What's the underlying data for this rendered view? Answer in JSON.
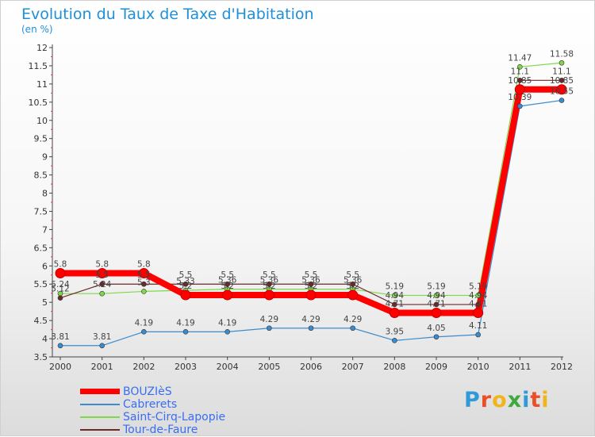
{
  "header": {
    "title": "Evolution du Taux de Taxe d'Habitation",
    "subtitle": "(en %)"
  },
  "logo": {
    "text": "Proxiti"
  },
  "chart_data": {
    "type": "line",
    "title": "Evolution du Taux de Taxe d'Habitation",
    "subtitle": "(en %)",
    "ylim": [
      3.5,
      12
    ],
    "yticks": [
      "3.5",
      "4",
      "4.5",
      "5",
      "5.5",
      "6",
      "6.5",
      "7",
      "7.5",
      "8",
      "8.5",
      "9",
      "9.5",
      "10",
      "10.5",
      "11",
      "11.5",
      "12"
    ],
    "x": [
      "2000",
      "2001",
      "2002",
      "2003",
      "2004",
      "2005",
      "2006",
      "2007",
      "2008",
      "2009",
      "2010",
      "2011",
      "2012"
    ],
    "grid": false,
    "legend": "bottom-left",
    "series": [
      {
        "name": "Saint-Cirq-Lapopie",
        "color": "#7fd84a",
        "width": 1.2,
        "values": [
          5.24,
          5.24,
          5.3,
          5.33,
          5.36,
          5.36,
          5.36,
          5.36,
          5.19,
          5.19,
          5.19,
          11.47,
          11.58
        ],
        "labels": [
          "5.24",
          "5.24",
          "5.3",
          "5.33",
          "5.36",
          "5.36",
          "5.36",
          "5.36",
          "5.19",
          "5.19",
          "5.19",
          "11.47",
          "11.58"
        ]
      },
      {
        "name": "Tour-de-Faure",
        "color": "#6b2a2a",
        "width": 1.2,
        "values": [
          5.12,
          5.5,
          5.5,
          5.5,
          5.5,
          5.5,
          5.5,
          5.5,
          4.94,
          4.94,
          4.94,
          11.1,
          11.1
        ],
        "labels": [
          "5.12",
          "5.5",
          "5.5",
          "5.5",
          "5.5",
          "5.5",
          "5.5",
          "5.5",
          "4.94",
          "4.94",
          "4.94",
          "11.1",
          "11.1"
        ]
      },
      {
        "name": "Cabrerets",
        "color": "#3b8ccf",
        "width": 1.2,
        "values": [
          3.81,
          3.81,
          4.19,
          4.19,
          4.19,
          4.29,
          4.29,
          4.29,
          3.95,
          4.05,
          4.11,
          10.39,
          10.55
        ],
        "labels": [
          "3.81",
          "3.81",
          "4.19",
          "4.19",
          "4.19",
          "4.29",
          "4.29",
          "4.29",
          "3.95",
          "4.05",
          "4.11",
          "10.39",
          "10.55"
        ]
      },
      {
        "name": "BOUZIèS",
        "color": "#ff0000",
        "width": 8,
        "values": [
          5.8,
          5.8,
          5.8,
          5.2,
          5.2,
          5.2,
          5.2,
          5.2,
          4.71,
          4.71,
          4.71,
          10.85,
          10.85
        ],
        "labels": [
          "5.8",
          "5.8",
          "5.8",
          "5.2",
          "5.2",
          "5.2",
          "5.2",
          "5.2",
          "4.71",
          "4.71",
          "4.71",
          "10.85",
          "10.85"
        ]
      }
    ],
    "legend_order": [
      "BOUZIèS",
      "Cabrerets",
      "Saint-Cirq-Lapopie",
      "Tour-de-Faure"
    ],
    "legend_colors": [
      "#ff0000",
      "#3b8ccf",
      "#7fd84a",
      "#6b2a2a"
    ]
  }
}
